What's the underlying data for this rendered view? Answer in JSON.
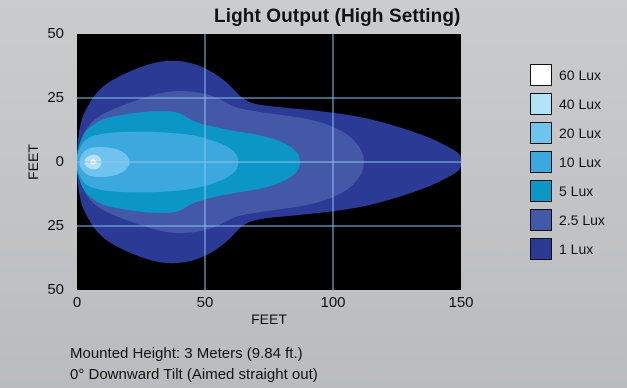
{
  "chart_data": {
    "type": "heatmap",
    "title": "Light Output (High Setting)",
    "xlabel": "FEET",
    "ylabel": "FEET",
    "xlim": [
      0,
      150
    ],
    "ylim": [
      -50,
      50
    ],
    "x_ticks": [
      "0",
      "50",
      "100",
      "150"
    ],
    "y_ticks": [
      "50",
      "25",
      "0",
      "25",
      "50"
    ],
    "grid": true,
    "legend_position": "right",
    "series": [
      {
        "name": "1 Lux",
        "color": "#2a3a95",
        "max_distance": 150,
        "max_half_width": 40
      },
      {
        "name": "2.5 Lux",
        "color": "#4458a8",
        "max_distance": 112,
        "max_half_width": 28
      },
      {
        "name": "5 Lux",
        "color": "#0b96c6",
        "max_distance": 87,
        "max_half_width": 20
      },
      {
        "name": "10 Lux",
        "color": "#3ba8de",
        "max_distance": 63,
        "max_half_width": 12
      },
      {
        "name": "20 Lux",
        "color": "#70c3ee",
        "max_distance": 20,
        "max_half_width": 6
      },
      {
        "name": "40 Lux",
        "color": "#b3e3f8",
        "max_distance": 9,
        "max_half_width": 3
      },
      {
        "name": "60 Lux",
        "color": "#ffffff",
        "max_distance": 7,
        "max_half_width": 1
      }
    ]
  },
  "legend_order": [
    "60 Lux",
    "40 Lux",
    "20 Lux",
    "10 Lux",
    "5 Lux",
    "2.5 Lux",
    "1 Lux"
  ],
  "notes": {
    "mounted_height": "Mounted Height: 3 Meters (9.84 ft.)",
    "tilt": "0° Downward Tilt (Aimed straight out)"
  }
}
